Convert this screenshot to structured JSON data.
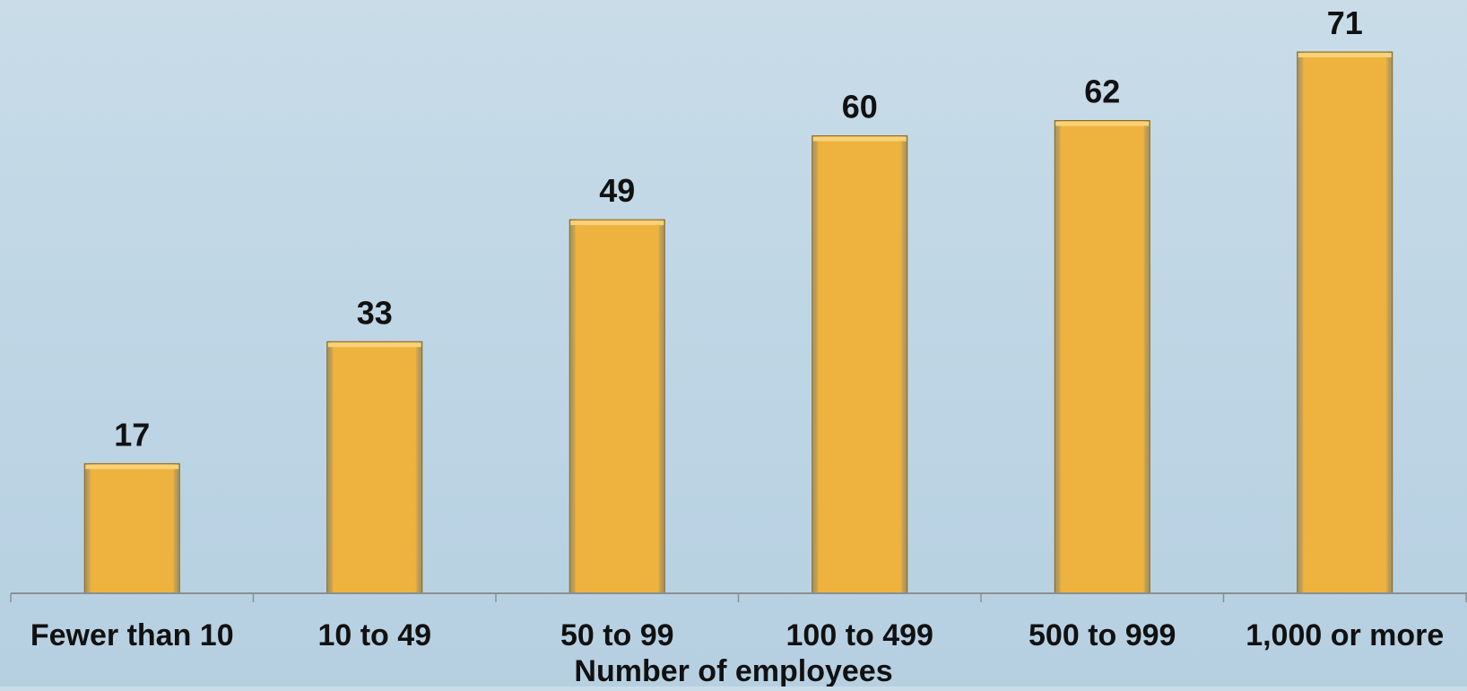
{
  "chart_data": {
    "type": "bar",
    "categories": [
      "Fewer than 10",
      "10 to 49",
      "50 to 99",
      "100 to 499",
      "500 to 999",
      "1,000 or more"
    ],
    "values": [
      17,
      33,
      49,
      60,
      62,
      71
    ],
    "data_labels": [
      "17",
      "33",
      "49",
      "60",
      "62",
      "71"
    ],
    "title": "",
    "xlabel": "Number of employees",
    "ylabel": "",
    "ylim": [
      0,
      71
    ],
    "grid": false,
    "legend": "none",
    "colors": {
      "bar": "#eeb33f",
      "bar_top": "#f7d27a",
      "bar_edge": "#8a6416",
      "axis": "#8a8f94",
      "background": "#c3d9e7"
    }
  }
}
